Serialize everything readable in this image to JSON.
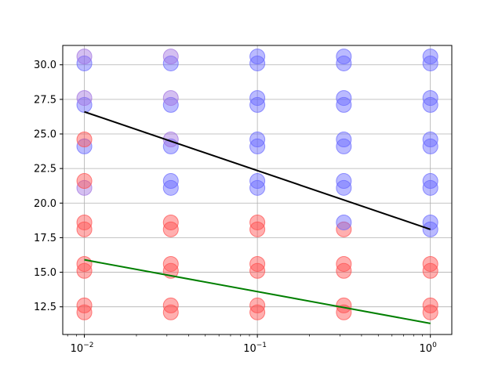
{
  "chart_data": {
    "type": "scatter",
    "title": "",
    "xlabel": "",
    "ylabel": "",
    "x_scale": "log",
    "xlim": [
      0.0075,
      1.33
    ],
    "ylim": [
      10.5,
      31.4
    ],
    "grid": true,
    "x": [
      0.01,
      0.0316,
      0.1,
      0.316,
      1.0
    ],
    "x_ticks": [
      {
        "value": 0.01,
        "base": "10",
        "exp": "−2"
      },
      {
        "value": 0.1,
        "base": "10",
        "exp": "−1"
      },
      {
        "value": 1.0,
        "base": "10",
        "exp": "0"
      }
    ],
    "y_ticks": [
      {
        "value": 12.5,
        "label": "12.5"
      },
      {
        "value": 15.0,
        "label": "15.0"
      },
      {
        "value": 17.5,
        "label": "17.5"
      },
      {
        "value": 20.0,
        "label": "20.0"
      },
      {
        "value": 22.5,
        "label": "22.5"
      },
      {
        "value": 25.0,
        "label": "25.0"
      },
      {
        "value": 27.5,
        "label": "27.5"
      },
      {
        "value": 30.0,
        "label": "30.0"
      }
    ],
    "colors": {
      "red_points": "#ff4d4d",
      "blue_points": "#6666ff",
      "purple_points": "#a070e0",
      "black_line": "#000000",
      "green_line": "#007f00",
      "grid": "#b0b0b0"
    },
    "points": [
      {
        "x": 0.01,
        "y": 12.1,
        "color": "red"
      },
      {
        "x": 0.01,
        "y": 12.6,
        "color": "red"
      },
      {
        "x": 0.01,
        "y": 15.1,
        "color": "red"
      },
      {
        "x": 0.01,
        "y": 15.6,
        "color": "red"
      },
      {
        "x": 0.01,
        "y": 18.1,
        "color": "red"
      },
      {
        "x": 0.01,
        "y": 18.6,
        "color": "red"
      },
      {
        "x": 0.01,
        "y": 21.1,
        "color": "purple"
      },
      {
        "x": 0.01,
        "y": 21.6,
        "color": "red"
      },
      {
        "x": 0.01,
        "y": 24.1,
        "color": "blue"
      },
      {
        "x": 0.01,
        "y": 24.6,
        "color": "red"
      },
      {
        "x": 0.01,
        "y": 27.1,
        "color": "blue"
      },
      {
        "x": 0.01,
        "y": 27.6,
        "color": "purple"
      },
      {
        "x": 0.01,
        "y": 30.1,
        "color": "blue"
      },
      {
        "x": 0.01,
        "y": 30.6,
        "color": "purple"
      },
      {
        "x": 0.0316,
        "y": 12.1,
        "color": "red"
      },
      {
        "x": 0.0316,
        "y": 12.6,
        "color": "red"
      },
      {
        "x": 0.0316,
        "y": 15.1,
        "color": "red"
      },
      {
        "x": 0.0316,
        "y": 15.6,
        "color": "red"
      },
      {
        "x": 0.0316,
        "y": 18.1,
        "color": "red"
      },
      {
        "x": 0.0316,
        "y": 18.6,
        "color": "red"
      },
      {
        "x": 0.0316,
        "y": 21.1,
        "color": "blue"
      },
      {
        "x": 0.0316,
        "y": 21.6,
        "color": "blue"
      },
      {
        "x": 0.0316,
        "y": 24.1,
        "color": "blue"
      },
      {
        "x": 0.0316,
        "y": 24.6,
        "color": "purple"
      },
      {
        "x": 0.0316,
        "y": 27.1,
        "color": "blue"
      },
      {
        "x": 0.0316,
        "y": 27.6,
        "color": "purple"
      },
      {
        "x": 0.0316,
        "y": 30.1,
        "color": "blue"
      },
      {
        "x": 0.0316,
        "y": 30.6,
        "color": "purple"
      },
      {
        "x": 0.1,
        "y": 12.1,
        "color": "red"
      },
      {
        "x": 0.1,
        "y": 12.6,
        "color": "red"
      },
      {
        "x": 0.1,
        "y": 15.1,
        "color": "red"
      },
      {
        "x": 0.1,
        "y": 15.6,
        "color": "red"
      },
      {
        "x": 0.1,
        "y": 18.1,
        "color": "red"
      },
      {
        "x": 0.1,
        "y": 18.6,
        "color": "red"
      },
      {
        "x": 0.1,
        "y": 21.1,
        "color": "blue"
      },
      {
        "x": 0.1,
        "y": 21.6,
        "color": "blue"
      },
      {
        "x": 0.1,
        "y": 24.1,
        "color": "blue"
      },
      {
        "x": 0.1,
        "y": 24.6,
        "color": "blue"
      },
      {
        "x": 0.1,
        "y": 27.1,
        "color": "blue"
      },
      {
        "x": 0.1,
        "y": 27.6,
        "color": "blue"
      },
      {
        "x": 0.1,
        "y": 30.1,
        "color": "blue"
      },
      {
        "x": 0.1,
        "y": 30.6,
        "color": "blue"
      },
      {
        "x": 0.316,
        "y": 12.1,
        "color": "red"
      },
      {
        "x": 0.316,
        "y": 12.6,
        "color": "red"
      },
      {
        "x": 0.316,
        "y": 15.1,
        "color": "red"
      },
      {
        "x": 0.316,
        "y": 15.6,
        "color": "red"
      },
      {
        "x": 0.316,
        "y": 18.1,
        "color": "red"
      },
      {
        "x": 0.316,
        "y": 18.6,
        "color": "blue"
      },
      {
        "x": 0.316,
        "y": 21.1,
        "color": "blue"
      },
      {
        "x": 0.316,
        "y": 21.6,
        "color": "blue"
      },
      {
        "x": 0.316,
        "y": 24.1,
        "color": "blue"
      },
      {
        "x": 0.316,
        "y": 24.6,
        "color": "blue"
      },
      {
        "x": 0.316,
        "y": 27.1,
        "color": "blue"
      },
      {
        "x": 0.316,
        "y": 27.6,
        "color": "blue"
      },
      {
        "x": 0.316,
        "y": 30.1,
        "color": "blue"
      },
      {
        "x": 0.316,
        "y": 30.6,
        "color": "blue"
      },
      {
        "x": 1.0,
        "y": 12.1,
        "color": "red"
      },
      {
        "x": 1.0,
        "y": 12.6,
        "color": "red"
      },
      {
        "x": 1.0,
        "y": 15.1,
        "color": "red"
      },
      {
        "x": 1.0,
        "y": 15.6,
        "color": "red"
      },
      {
        "x": 1.0,
        "y": 18.1,
        "color": "blue"
      },
      {
        "x": 1.0,
        "y": 18.6,
        "color": "blue"
      },
      {
        "x": 1.0,
        "y": 21.1,
        "color": "blue"
      },
      {
        "x": 1.0,
        "y": 21.6,
        "color": "blue"
      },
      {
        "x": 1.0,
        "y": 24.1,
        "color": "blue"
      },
      {
        "x": 1.0,
        "y": 24.6,
        "color": "blue"
      },
      {
        "x": 1.0,
        "y": 27.1,
        "color": "blue"
      },
      {
        "x": 1.0,
        "y": 27.6,
        "color": "blue"
      },
      {
        "x": 1.0,
        "y": 30.1,
        "color": "blue"
      },
      {
        "x": 1.0,
        "y": 30.6,
        "color": "blue"
      }
    ],
    "lines": [
      {
        "color": "black",
        "x": [
          0.01,
          1.0
        ],
        "y": [
          26.6,
          18.1
        ]
      },
      {
        "color": "green",
        "x": [
          0.01,
          1.0
        ],
        "y": [
          15.9,
          11.3
        ]
      }
    ]
  }
}
